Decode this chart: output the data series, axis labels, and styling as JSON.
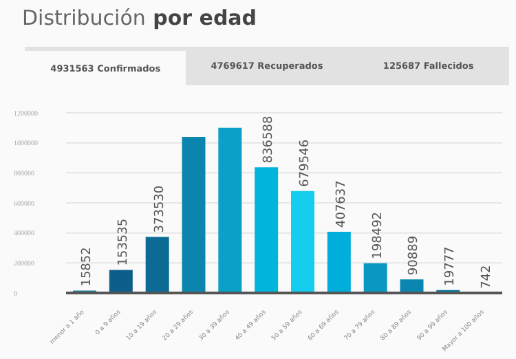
{
  "chart_data": {
    "type": "bar",
    "title": "Distribución por edad",
    "annotations": [
      "4931563 Confirmados",
      "4769617 Recuperados",
      "125687 Fallecidos"
    ],
    "categories": [
      "menor a 1 año",
      "0 a 9 años",
      "10 a 19 años",
      "20 a 29 años",
      "30 a 39 años",
      "40 a 49 años",
      "50 a 59 años",
      "60 a 69 años",
      "70 a 79 años",
      "80 a 89 años",
      "90 a 99 años",
      "Mayor a 100 años"
    ],
    "values": [
      15852,
      153535,
      373530,
      1040000,
      1100000,
      836588,
      679546,
      407637,
      198492,
      90889,
      19777,
      742
    ],
    "value_labels": [
      "15852",
      "153535",
      "373530",
      null,
      null,
      "836588",
      "679546",
      "407637",
      "198492",
      "90889",
      "19777",
      "742"
    ],
    "colors": [
      "#1a7fa0",
      "#0d5e8a",
      "#0b6b94",
      "#0b85ad",
      "#0aa0c8",
      "#00b5dc",
      "#14cdef",
      "#00aedb",
      "#0b97c3",
      "#0a86b0",
      "#0b7aa0",
      "#0b6b94"
    ],
    "ylim": [
      0,
      1200000
    ],
    "yticks": [
      0,
      200000,
      400000,
      600000,
      800000,
      1000000,
      1200000
    ],
    "grid": "y"
  }
}
